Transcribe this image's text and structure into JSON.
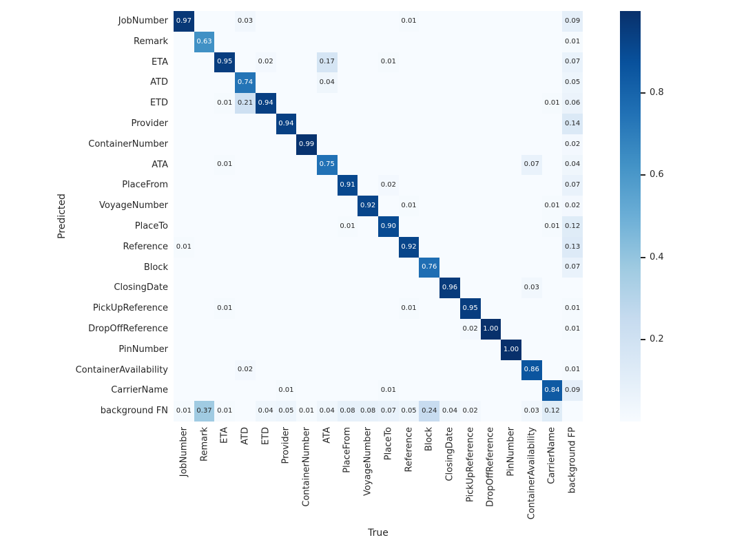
{
  "chart_data": {
    "type": "heatmap",
    "title": "",
    "xlabel": "True",
    "ylabel": "Predicted",
    "x_labels": [
      "JobNumber",
      "Remark",
      "ETA",
      "ATD",
      "ETD",
      "Provider",
      "ContainerNumber",
      "ATA",
      "PlaceFrom",
      "VoyageNumber",
      "PlaceTo",
      "Reference",
      "Block",
      "ClosingDate",
      "PickUpReference",
      "DropOffReference",
      "PinNumber",
      "ContainerAvailability",
      "CarrierName",
      "background FP"
    ],
    "y_labels": [
      "JobNumber",
      "Remark",
      "ETA",
      "ATD",
      "ETD",
      "Provider",
      "ContainerNumber",
      "ATA",
      "PlaceFrom",
      "VoyageNumber",
      "PlaceTo",
      "Reference",
      "Block",
      "ClosingDate",
      "PickUpReference",
      "DropOffReference",
      "PinNumber",
      "ContainerAvailability",
      "CarrierName",
      "background FN"
    ],
    "vmin": 0,
    "vmax": 1,
    "colormap": "Blues",
    "colormap_stops": [
      "#f7fbff",
      "#deebf7",
      "#c6dbef",
      "#9ecae1",
      "#6baed6",
      "#4292c6",
      "#2171b5",
      "#08519c",
      "#08306b"
    ],
    "background_color": "#ffffff",
    "annot_text_dark": "#262626",
    "annot_text_light": "#ffffff",
    "colorbar_position": "right",
    "colorbar_ticks": [
      {
        "label": "0.8",
        "value": 0.8
      },
      {
        "label": "0.6",
        "value": 0.6
      },
      {
        "label": "0.4",
        "value": 0.4
      },
      {
        "label": "0.2",
        "value": 0.2
      }
    ],
    "grid": false,
    "cells": [
      {
        "r": 0,
        "c": 0,
        "v": 0.97
      },
      {
        "r": 0,
        "c": 3,
        "v": 0.03
      },
      {
        "r": 0,
        "c": 11,
        "v": 0.01
      },
      {
        "r": 0,
        "c": 19,
        "v": 0.09
      },
      {
        "r": 1,
        "c": 1,
        "v": 0.63
      },
      {
        "r": 1,
        "c": 19,
        "v": 0.01
      },
      {
        "r": 2,
        "c": 2,
        "v": 0.95
      },
      {
        "r": 2,
        "c": 4,
        "v": 0.02
      },
      {
        "r": 2,
        "c": 7,
        "v": 0.17
      },
      {
        "r": 2,
        "c": 10,
        "v": 0.01
      },
      {
        "r": 2,
        "c": 19,
        "v": 0.07
      },
      {
        "r": 3,
        "c": 3,
        "v": 0.74
      },
      {
        "r": 3,
        "c": 7,
        "v": 0.04
      },
      {
        "r": 3,
        "c": 19,
        "v": 0.05
      },
      {
        "r": 4,
        "c": 2,
        "v": 0.01
      },
      {
        "r": 4,
        "c": 3,
        "v": 0.21
      },
      {
        "r": 4,
        "c": 4,
        "v": 0.94
      },
      {
        "r": 4,
        "c": 18,
        "v": 0.01
      },
      {
        "r": 4,
        "c": 19,
        "v": 0.06
      },
      {
        "r": 5,
        "c": 5,
        "v": 0.94
      },
      {
        "r": 5,
        "c": 19,
        "v": 0.14
      },
      {
        "r": 6,
        "c": 6,
        "v": 0.99
      },
      {
        "r": 6,
        "c": 19,
        "v": 0.02
      },
      {
        "r": 7,
        "c": 2,
        "v": 0.01
      },
      {
        "r": 7,
        "c": 7,
        "v": 0.75
      },
      {
        "r": 7,
        "c": 17,
        "v": 0.07
      },
      {
        "r": 7,
        "c": 19,
        "v": 0.04
      },
      {
        "r": 8,
        "c": 8,
        "v": 0.91
      },
      {
        "r": 8,
        "c": 10,
        "v": 0.02
      },
      {
        "r": 8,
        "c": 19,
        "v": 0.07
      },
      {
        "r": 9,
        "c": 9,
        "v": 0.92
      },
      {
        "r": 9,
        "c": 11,
        "v": 0.01
      },
      {
        "r": 9,
        "c": 18,
        "v": 0.01
      },
      {
        "r": 9,
        "c": 19,
        "v": 0.02
      },
      {
        "r": 10,
        "c": 8,
        "v": 0.01
      },
      {
        "r": 10,
        "c": 10,
        "v": 0.9
      },
      {
        "r": 10,
        "c": 18,
        "v": 0.01
      },
      {
        "r": 10,
        "c": 19,
        "v": 0.12
      },
      {
        "r": 11,
        "c": 0,
        "v": 0.01
      },
      {
        "r": 11,
        "c": 11,
        "v": 0.92
      },
      {
        "r": 11,
        "c": 19,
        "v": 0.13
      },
      {
        "r": 12,
        "c": 12,
        "v": 0.76
      },
      {
        "r": 12,
        "c": 19,
        "v": 0.07
      },
      {
        "r": 13,
        "c": 13,
        "v": 0.96
      },
      {
        "r": 13,
        "c": 17,
        "v": 0.03
      },
      {
        "r": 14,
        "c": 2,
        "v": 0.01
      },
      {
        "r": 14,
        "c": 11,
        "v": 0.01
      },
      {
        "r": 14,
        "c": 14,
        "v": 0.95
      },
      {
        "r": 14,
        "c": 19,
        "v": 0.01
      },
      {
        "r": 15,
        "c": 14,
        "v": 0.02
      },
      {
        "r": 15,
        "c": 15,
        "v": 1.0
      },
      {
        "r": 15,
        "c": 19,
        "v": 0.01
      },
      {
        "r": 16,
        "c": 16,
        "v": 1.0
      },
      {
        "r": 17,
        "c": 3,
        "v": 0.02
      },
      {
        "r": 17,
        "c": 17,
        "v": 0.86
      },
      {
        "r": 17,
        "c": 19,
        "v": 0.01
      },
      {
        "r": 18,
        "c": 5,
        "v": 0.01
      },
      {
        "r": 18,
        "c": 10,
        "v": 0.01
      },
      {
        "r": 18,
        "c": 18,
        "v": 0.84
      },
      {
        "r": 18,
        "c": 19,
        "v": 0.09
      },
      {
        "r": 19,
        "c": 0,
        "v": 0.01
      },
      {
        "r": 19,
        "c": 1,
        "v": 0.37
      },
      {
        "r": 19,
        "c": 2,
        "v": 0.01
      },
      {
        "r": 19,
        "c": 4,
        "v": 0.04
      },
      {
        "r": 19,
        "c": 5,
        "v": 0.05
      },
      {
        "r": 19,
        "c": 6,
        "v": 0.01
      },
      {
        "r": 19,
        "c": 7,
        "v": 0.04
      },
      {
        "r": 19,
        "c": 8,
        "v": 0.08
      },
      {
        "r": 19,
        "c": 9,
        "v": 0.08
      },
      {
        "r": 19,
        "c": 10,
        "v": 0.07
      },
      {
        "r": 19,
        "c": 11,
        "v": 0.05
      },
      {
        "r": 19,
        "c": 12,
        "v": 0.24
      },
      {
        "r": 19,
        "c": 13,
        "v": 0.04
      },
      {
        "r": 19,
        "c": 14,
        "v": 0.02
      },
      {
        "r": 19,
        "c": 17,
        "v": 0.03
      },
      {
        "r": 19,
        "c": 18,
        "v": 0.12
      }
    ]
  }
}
